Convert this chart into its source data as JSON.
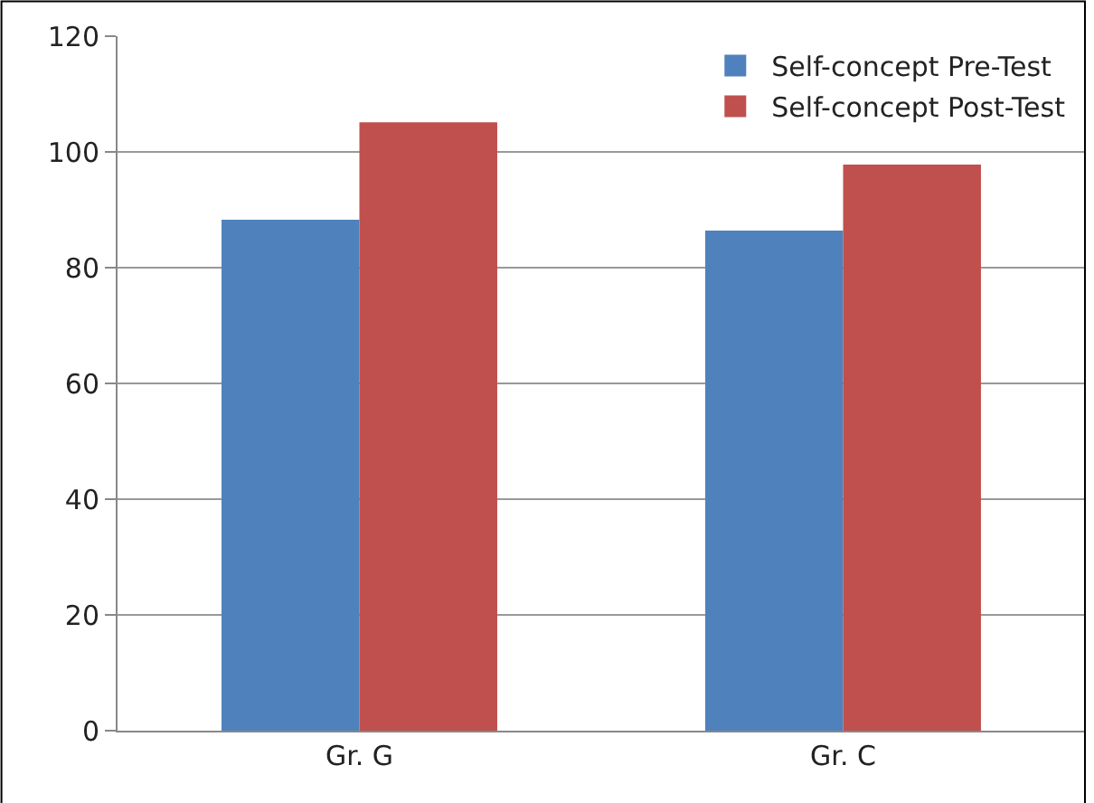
{
  "chart_data": {
    "type": "bar",
    "categories": [
      "Gr. G",
      "Gr. C"
    ],
    "series": [
      {
        "name": "Self-concept Pre-Test",
        "color": "#4f81bd",
        "values": [
          88.3,
          86.4
        ]
      },
      {
        "name": "Self-concept Post-Test",
        "color": "#c0504d",
        "values": [
          105.1,
          97.8
        ]
      }
    ],
    "ylim": [
      0,
      120
    ],
    "yticks": [
      0,
      20,
      40,
      60,
      80,
      100,
      120
    ],
    "grid": "y",
    "legend": "top right"
  }
}
